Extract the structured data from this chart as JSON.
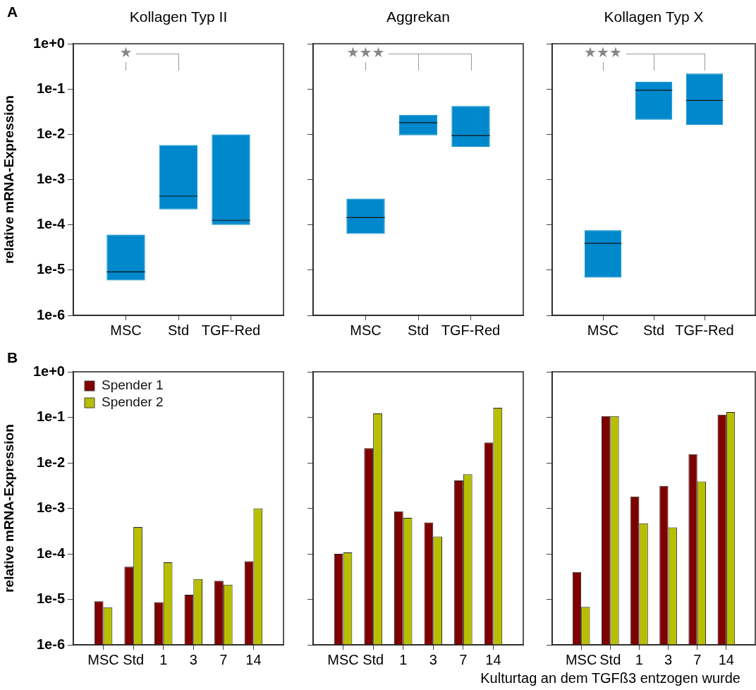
{
  "chart_data": [
    {
      "type": "box",
      "title": "Kollagen Typ II",
      "ylabel": "relative mRNA-Expression",
      "categories": [
        "MSC",
        "Std",
        "TGF-Red"
      ],
      "series": [
        {
          "color": "#0088cc",
          "boxes": [
            {
              "low": 5.9e-06,
              "q1": 5.9e-06,
              "median": 9.1e-06,
              "q3": 6.1e-05,
              "high": 6.1e-05
            },
            {
              "low": 0.00022,
              "q1": 0.00022,
              "median": 0.00043,
              "q3": 0.0058,
              "high": 0.0058
            },
            {
              "low": 0.0001,
              "q1": 0.0001,
              "median": 0.000126,
              "q3": 0.0099,
              "high": 0.0099
            }
          ]
        }
      ],
      "ylim": [
        1e-06,
        1
      ],
      "yticks": [
        {
          "value": 1e-06,
          "label": "1e-6"
        },
        {
          "value": 1e-05,
          "label": "1e-5"
        },
        {
          "value": 0.0001,
          "label": "1e-4"
        },
        {
          "value": 0.001,
          "label": "1e-3"
        },
        {
          "value": 0.01,
          "label": "1e-2"
        },
        {
          "value": 0.1,
          "label": "1e-1"
        },
        {
          "value": 1,
          "label": "1e+0"
        }
      ],
      "log": true,
      "annotations": [
        "A",
        "★"
      ]
    },
    {
      "type": "box",
      "title": "Aggrekan",
      "categories": [
        "MSC",
        "Std",
        "TGF-Red"
      ],
      "series": [
        {
          "color": "#0088cc",
          "boxes": [
            {
              "low": 6.3e-05,
              "q1": 6.3e-05,
              "median": 0.000145,
              "q3": 0.00038,
              "high": 0.00038
            },
            {
              "low": 0.0095,
              "q1": 0.0095,
              "median": 0.018,
              "q3": 0.027,
              "high": 0.027
            },
            {
              "low": 0.0053,
              "q1": 0.0053,
              "median": 0.0094,
              "q3": 0.042,
              "high": 0.042
            }
          ]
        }
      ],
      "ylim": [
        1e-06,
        1
      ],
      "yticks": [
        {
          "value": 1e-06,
          "label": null
        },
        {
          "value": 1e-05,
          "label": null
        },
        {
          "value": 0.0001,
          "label": null
        },
        {
          "value": 0.001,
          "label": null
        },
        {
          "value": 0.01,
          "label": null
        },
        {
          "value": 0.1,
          "label": null
        },
        {
          "value": 1,
          "label": null
        }
      ],
      "log": true,
      "tick_labels": "x",
      "annotations": [
        "★★★"
      ]
    },
    {
      "type": "box",
      "title": "Kollagen Typ X",
      "categories": [
        "MSC",
        "Std",
        "TGF-Red"
      ],
      "series": [
        {
          "color": "#0088cc",
          "boxes": [
            {
              "low": 6.8e-06,
              "q1": 6.8e-06,
              "median": 3.9e-05,
              "q3": 7.6e-05,
              "high": 7.6e-05
            },
            {
              "low": 0.021,
              "q1": 0.021,
              "median": 0.094,
              "q3": 0.145,
              "high": 0.145
            },
            {
              "low": 0.016,
              "q1": 0.016,
              "median": 0.056,
              "q3": 0.22,
              "high": 0.22
            }
          ]
        }
      ],
      "ylim": [
        1e-06,
        1
      ],
      "yticks": [
        {
          "value": 1e-06,
          "label": null
        },
        {
          "value": 1e-05,
          "label": null
        },
        {
          "value": 0.0001,
          "label": null
        },
        {
          "value": 0.001,
          "label": null
        },
        {
          "value": 0.01,
          "label": null
        },
        {
          "value": 0.1,
          "label": null
        },
        {
          "value": 1,
          "label": null
        }
      ],
      "log": true,
      "tick_labels": "x",
      "annotations": [
        "★★★"
      ]
    },
    {
      "type": "bar",
      "ylabel": "relative mRNA-Expression",
      "categories": [
        "MSC",
        "Std",
        "1",
        "3",
        "7",
        "14"
      ],
      "series": [
        {
          "name": "Spender 1",
          "color": "#800000",
          "values": [
            9.1e-06,
            5.2e-05,
            8.7e-06,
            1.26e-05,
            2.55e-05,
            6.9e-05
          ]
        },
        {
          "name": "Spender 2",
          "color": "#b8bf00",
          "values": [
            6.7e-06,
            0.00039,
            6.5e-05,
            2.8e-05,
            2.1e-05,
            0.001
          ]
        }
      ],
      "ylim": [
        1e-06,
        1
      ],
      "yticks": [
        {
          "value": 1e-06,
          "label": "1e-6"
        },
        {
          "value": 1e-05,
          "label": "1e-5"
        },
        {
          "value": 0.0001,
          "label": "1e-4"
        },
        {
          "value": 0.001,
          "label": "1e-3"
        },
        {
          "value": 0.01,
          "label": "1e-2"
        },
        {
          "value": 0.1,
          "label": "1e-1"
        },
        {
          "value": 1,
          "label": "1e+0"
        }
      ],
      "log": true,
      "legend": "top left",
      "annotations": [
        "B"
      ]
    },
    {
      "type": "bar",
      "categories": [
        "MSC",
        "Std",
        "1",
        "3",
        "7",
        "14"
      ],
      "series": [
        {
          "color": "#800000",
          "values": [
            0.0001,
            0.021,
            0.00086,
            0.00049,
            0.0041,
            0.028
          ]
        },
        {
          "color": "#b8bf00",
          "values": [
            0.000107,
            0.122,
            0.00062,
            0.00024,
            0.0056,
            0.162
          ]
        }
      ],
      "ylim": [
        1e-06,
        1
      ],
      "yticks": [
        {
          "value": 1e-06,
          "label": null
        },
        {
          "value": 1e-05,
          "label": null
        },
        {
          "value": 0.0001,
          "label": null
        },
        {
          "value": 0.001,
          "label": null
        },
        {
          "value": 0.01,
          "label": null
        },
        {
          "value": 0.1,
          "label": null
        },
        {
          "value": 1,
          "label": null
        }
      ],
      "log": true,
      "tick_labels": "x"
    },
    {
      "type": "bar",
      "xlabel": "Kulturtag an dem TGFß3 entzogen wurde",
      "categories": [
        "MSC",
        "Std",
        "1",
        "3",
        "7",
        "14"
      ],
      "series": [
        {
          "color": "#800000",
          "values": [
            4e-05,
            0.106,
            0.00182,
            0.0031,
            0.0155,
            0.114
          ]
        },
        {
          "color": "#b8bf00",
          "values": [
            6.8e-06,
            0.106,
            0.00047,
            0.00038,
            0.0039,
            0.131
          ]
        }
      ],
      "ylim": [
        1e-06,
        1
      ],
      "yticks": [
        {
          "value": 1e-06,
          "label": null
        },
        {
          "value": 1e-05,
          "label": null
        },
        {
          "value": 0.0001,
          "label": null
        },
        {
          "value": 0.001,
          "label": null
        },
        {
          "value": 0.01,
          "label": null
        },
        {
          "value": 0.1,
          "label": null
        },
        {
          "value": 1,
          "label": null
        }
      ],
      "log": true,
      "tick_labels": "x"
    }
  ]
}
